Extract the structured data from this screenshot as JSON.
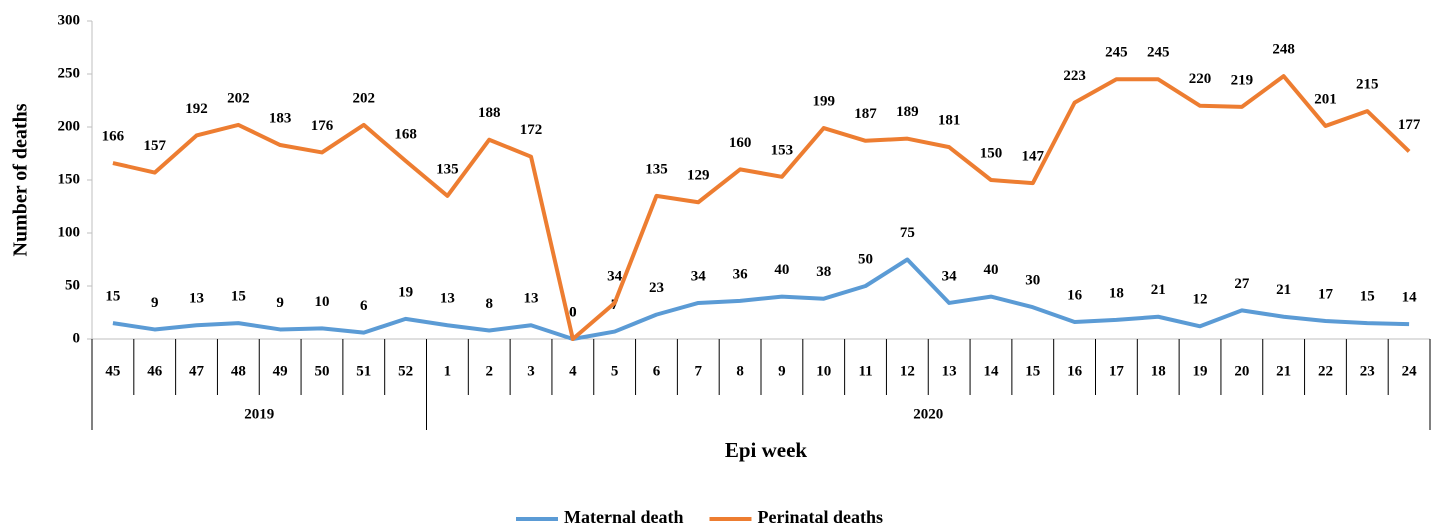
{
  "chart_data": {
    "type": "line",
    "y_label": "Number of deaths",
    "x_label": "Epi week",
    "categories": [
      "45",
      "46",
      "47",
      "48",
      "49",
      "50",
      "51",
      "52",
      "1",
      "2",
      "3",
      "4",
      "5",
      "6",
      "7",
      "8",
      "9",
      "10",
      "11",
      "12",
      "13",
      "14",
      "15",
      "16",
      "17",
      "18",
      "19",
      "20",
      "21",
      "22",
      "23",
      "24"
    ],
    "groups": [
      {
        "label": "2019",
        "span": 8
      },
      {
        "label": "2020",
        "span": 24
      }
    ],
    "series": [
      {
        "name": "Maternal death",
        "color": "#5b9bd5",
        "values": [
          15,
          9,
          13,
          15,
          9,
          10,
          6,
          19,
          13,
          8,
          13,
          0,
          7,
          23,
          34,
          36,
          40,
          38,
          50,
          75,
          34,
          40,
          30,
          16,
          18,
          21,
          12,
          27,
          21,
          17,
          15,
          14
        ]
      },
      {
        "name": "Perinatal deaths",
        "color": "#ed7d31",
        "values": [
          166,
          157,
          192,
          202,
          183,
          176,
          202,
          168,
          135,
          188,
          172,
          0,
          34,
          135,
          129,
          160,
          153,
          199,
          187,
          189,
          181,
          150,
          147,
          223,
          245,
          245,
          220,
          219,
          248,
          201,
          215,
          177
        ]
      }
    ],
    "ylim": [
      0,
      300
    ],
    "yticks": [
      0,
      50,
      100,
      150,
      200,
      250,
      300
    ],
    "grid": false,
    "legend": "bottom"
  }
}
